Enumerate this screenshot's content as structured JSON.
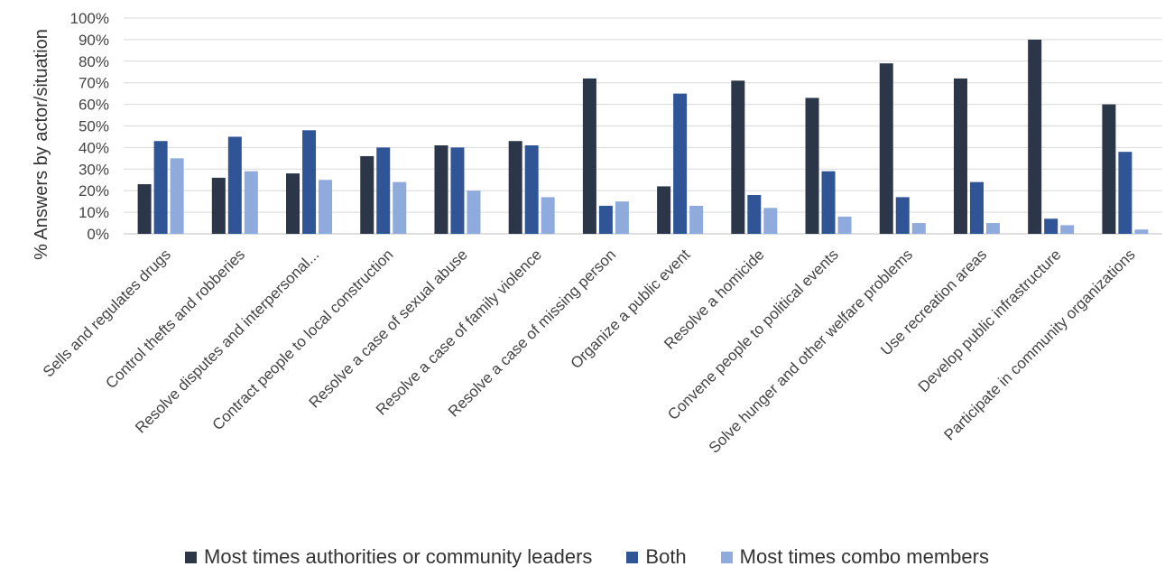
{
  "chart_data": {
    "type": "bar",
    "title": "",
    "xlabel": "",
    "ylabel": "% Answers by actor/situation",
    "ylim": [
      0,
      100
    ],
    "yticks": [
      "0%",
      "10%",
      "20%",
      "30%",
      "40%",
      "50%",
      "60%",
      "70%",
      "80%",
      "90%",
      "100%"
    ],
    "grid": true,
    "legend_position": "bottom",
    "categories": [
      "Sells and regulates drugs",
      "Control thefts and robberies",
      "Resolve disputes and interpersonal...",
      "Contract people to local construction",
      "Resolve a case of sexual abuse",
      "Resolve a case of family violence",
      "Resolve a case of missing person",
      "Organize a public event",
      "Resolve a homicide",
      "Convene people to political events",
      "Solve hunger and other welfare problems",
      "Use recreation areas",
      "Develop public infrastructure",
      "Participate in community organizations"
    ],
    "series": [
      {
        "name": "Most times authorities or community leaders",
        "color": "#2b3648",
        "values": [
          23,
          26,
          28,
          36,
          41,
          43,
          72,
          22,
          71,
          63,
          79,
          72,
          90,
          60
        ]
      },
      {
        "name": "Both",
        "color": "#2f5597",
        "values": [
          43,
          45,
          48,
          40,
          40,
          41,
          13,
          65,
          18,
          29,
          17,
          24,
          7,
          38
        ]
      },
      {
        "name": "Most times combo members",
        "color": "#8faadc",
        "values": [
          35,
          29,
          25,
          24,
          20,
          17,
          15,
          13,
          12,
          8,
          5,
          5,
          4,
          2
        ]
      }
    ]
  }
}
